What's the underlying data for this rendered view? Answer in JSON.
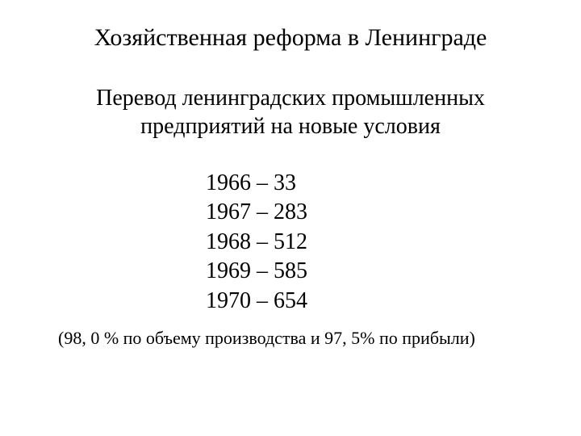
{
  "title": "Хозяйственная реформа в Ленинграде",
  "subtitle": "Перевод ленинградских промышленных предприятий на новые условия",
  "rows": [
    {
      "year": "1966",
      "value": "33"
    },
    {
      "year": "1967",
      "value": "283"
    },
    {
      "year": "1968",
      "value": "512"
    },
    {
      "year": "1969",
      "value": "585"
    },
    {
      "year": "1970",
      "value": "654"
    }
  ],
  "footnote": "(98, 0 % по объему производства и 97, 5% по прибыли)",
  "colors": {
    "background": "#ffffff",
    "text": "#000000"
  },
  "fonts": {
    "family": "Times New Roman",
    "title_size": 30,
    "subtitle_size": 28,
    "row_size": 28,
    "footnote_size": 22
  }
}
